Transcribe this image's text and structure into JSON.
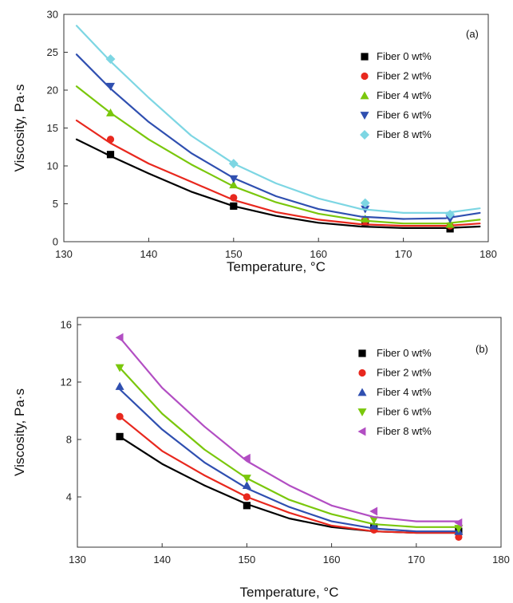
{
  "chart_data": [
    {
      "type": "line",
      "panel_label": "(a)",
      "xlabel": "Temperature, °C",
      "ylabel": "Viscosity, Pa·s",
      "xlim": [
        130,
        180
      ],
      "ylim": [
        0,
        30
      ],
      "xticks": [
        130,
        140,
        150,
        160,
        170,
        180
      ],
      "yticks": [
        0,
        5,
        10,
        15,
        20,
        25,
        30
      ],
      "legend_position": "right",
      "series": [
        {
          "name": "Fiber 0 wt%",
          "color": "#000000",
          "marker": "square",
          "points": {
            "x": [
              135.5,
              150,
              165.5,
              175.5
            ],
            "y": [
              11.5,
              4.7,
              2.6,
              1.7
            ]
          },
          "curve": {
            "x": [
              131.5,
              135.5,
              140,
              145,
              150,
              155,
              160,
              165,
              170,
              175,
              179
            ],
            "y": [
              13.5,
              11.3,
              9.0,
              6.6,
              4.7,
              3.4,
              2.5,
              2.0,
              1.8,
              1.8,
              2.0
            ]
          }
        },
        {
          "name": "Fiber 2 wt%",
          "color": "#e8281e",
          "marker": "circle",
          "points": {
            "x": [
              135.5,
              150,
              165.5,
              175.5
            ],
            "y": [
              13.5,
              5.8,
              2.8,
              2.1
            ]
          },
          "curve": {
            "x": [
              131.5,
              135.5,
              140,
              145,
              150,
              155,
              160,
              165,
              170,
              175,
              179
            ],
            "y": [
              16.0,
              13.0,
              10.3,
              7.9,
              5.5,
              3.9,
              2.9,
              2.3,
              2.1,
              2.1,
              2.4
            ]
          }
        },
        {
          "name": "Fiber 4 wt%",
          "color": "#7ac70c",
          "marker": "triangle-up",
          "points": {
            "x": [
              135.5,
              150,
              165.5,
              175.5
            ],
            "y": [
              17.0,
              7.5,
              3.0,
              2.3
            ]
          },
          "curve": {
            "x": [
              131.5,
              135.5,
              140,
              145,
              150,
              155,
              160,
              165,
              170,
              175,
              179
            ],
            "y": [
              20.5,
              17.0,
              13.5,
              10.2,
              7.3,
              5.2,
              3.7,
              2.8,
              2.4,
              2.4,
              2.9
            ]
          }
        },
        {
          "name": "Fiber 6 wt%",
          "color": "#2f4fb0",
          "marker": "triangle-down",
          "points": {
            "x": [
              135.5,
              150,
              165.5,
              175.5
            ],
            "y": [
              20.5,
              8.3,
              4.3,
              3.0
            ]
          },
          "curve": {
            "x": [
              131.5,
              135.5,
              140,
              145,
              150,
              155,
              160,
              165,
              170,
              175,
              179
            ],
            "y": [
              24.7,
              20.2,
              15.8,
              11.7,
              8.4,
              6.0,
              4.3,
              3.3,
              3.0,
              3.1,
              3.8
            ]
          }
        },
        {
          "name": "Fiber 8 wt%",
          "color": "#7dd6e3",
          "marker": "diamond",
          "points": {
            "x": [
              135.5,
              150,
              165.5,
              175.5
            ],
            "y": [
              24.1,
              10.3,
              5.1,
              3.6
            ]
          },
          "curve": {
            "x": [
              131.5,
              135.5,
              140,
              145,
              150,
              155,
              160,
              165,
              170,
              175,
              179
            ],
            "y": [
              28.5,
              23.8,
              19.0,
              14.0,
              10.3,
              7.7,
              5.7,
              4.3,
              3.8,
              3.8,
              4.4
            ]
          }
        }
      ]
    },
    {
      "type": "line",
      "panel_label": "(b)",
      "xlabel": "Temperature, °C",
      "ylabel": "Viscosity, Pa·s",
      "xlim": [
        130,
        180
      ],
      "ylim": [
        0.5,
        16.5
      ],
      "xticks": [
        130,
        140,
        150,
        160,
        170,
        180
      ],
      "yticks": [
        4,
        8,
        12,
        16
      ],
      "legend_position": "right",
      "series": [
        {
          "name": "Fiber 0 wt%",
          "color": "#000000",
          "marker": "square",
          "points": {
            "x": [
              135,
              150,
              165,
              175
            ],
            "y": [
              8.2,
              3.4,
              1.9,
              1.6
            ]
          },
          "curve": {
            "x": [
              135,
              140,
              145,
              150,
              155,
              160,
              165,
              170,
              175
            ],
            "y": [
              8.2,
              6.3,
              4.8,
              3.5,
              2.5,
              1.9,
              1.6,
              1.5,
              1.5
            ]
          }
        },
        {
          "name": "Fiber 2 wt%",
          "color": "#e8281e",
          "marker": "circle",
          "points": {
            "x": [
              135,
              150,
              165,
              175
            ],
            "y": [
              9.6,
              4.0,
              1.7,
              1.2
            ]
          },
          "curve": {
            "x": [
              135,
              140,
              145,
              150,
              155,
              160,
              165,
              170,
              175
            ],
            "y": [
              9.6,
              7.2,
              5.5,
              4.0,
              2.9,
              2.0,
              1.6,
              1.5,
              1.5
            ]
          }
        },
        {
          "name": "Fiber 4 wt%",
          "color": "#2f4fb0",
          "marker": "triangle-up",
          "points": {
            "x": [
              135,
              150,
              165,
              175
            ],
            "y": [
              11.7,
              4.8,
              2.0,
              1.6
            ]
          },
          "curve": {
            "x": [
              135,
              140,
              145,
              150,
              155,
              160,
              165,
              170,
              175
            ],
            "y": [
              11.5,
              8.7,
              6.4,
              4.6,
              3.3,
              2.3,
              1.8,
              1.6,
              1.6
            ]
          }
        },
        {
          "name": "Fiber 6 wt%",
          "color": "#7ac70c",
          "marker": "triangle-down",
          "points": {
            "x": [
              135,
              150,
              165,
              175
            ],
            "y": [
              13.0,
              5.3,
              2.4,
              1.8
            ]
          },
          "curve": {
            "x": [
              135,
              140,
              145,
              150,
              155,
              160,
              165,
              170,
              175
            ],
            "y": [
              13.0,
              9.8,
              7.3,
              5.3,
              3.8,
              2.8,
              2.1,
              1.9,
              1.9
            ]
          }
        },
        {
          "name": "Fiber 8 wt%",
          "color": "#b24ec3",
          "marker": "triangle-left",
          "points": {
            "x": [
              135,
              150,
              165,
              175
            ],
            "y": [
              15.1,
              6.7,
              3.0,
              2.2
            ]
          },
          "curve": {
            "x": [
              135,
              140,
              145,
              150,
              155,
              160,
              165,
              170,
              175
            ],
            "y": [
              15.1,
              11.6,
              8.9,
              6.5,
              4.8,
              3.4,
              2.6,
              2.3,
              2.3
            ]
          }
        }
      ]
    }
  ]
}
